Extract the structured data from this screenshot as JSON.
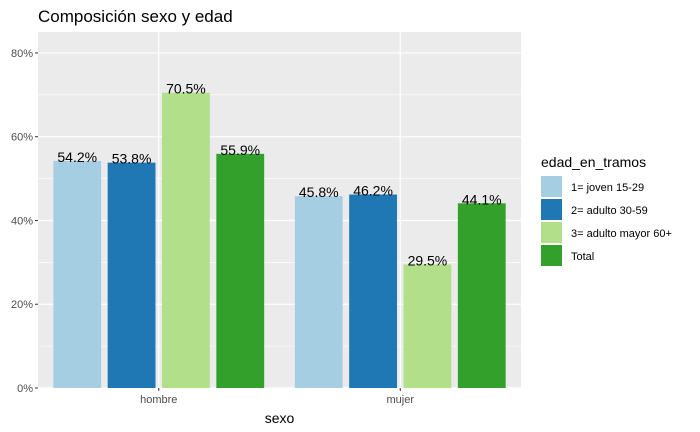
{
  "chart_data": {
    "type": "bar",
    "title": "Composición sexo y edad",
    "xlabel": "sexo",
    "ylabel": "",
    "categories": [
      "hombre",
      "mujer"
    ],
    "ylim": [
      0,
      0.85
    ],
    "yticks": [
      0,
      0.2,
      0.4,
      0.6,
      0.8
    ],
    "ytick_labels": [
      "0%",
      "20%",
      "40%",
      "60%",
      "80%"
    ],
    "grid": true,
    "legend": {
      "title": "edad_en_tramos",
      "position": "right"
    },
    "series": [
      {
        "name": "1= joven 15-29",
        "color": "#a6cee3",
        "values": [
          0.542,
          0.458
        ],
        "labels": [
          "54.2%",
          "45.8%"
        ]
      },
      {
        "name": "2= adulto 30-59",
        "color": "#1f78b4",
        "values": [
          0.538,
          0.462
        ],
        "labels": [
          "53.8%",
          "46.2%"
        ]
      },
      {
        "name": "3= adulto mayor 60+",
        "color": "#b2df8a",
        "values": [
          0.705,
          0.295
        ],
        "labels": [
          "70.5%",
          "29.5%"
        ]
      },
      {
        "name": "Total",
        "color": "#33a02c",
        "values": [
          0.559,
          0.441
        ],
        "labels": [
          "55.9%",
          "44.1%"
        ]
      }
    ],
    "panel_background": "#ebebeb",
    "grid_color": "#ffffff"
  }
}
